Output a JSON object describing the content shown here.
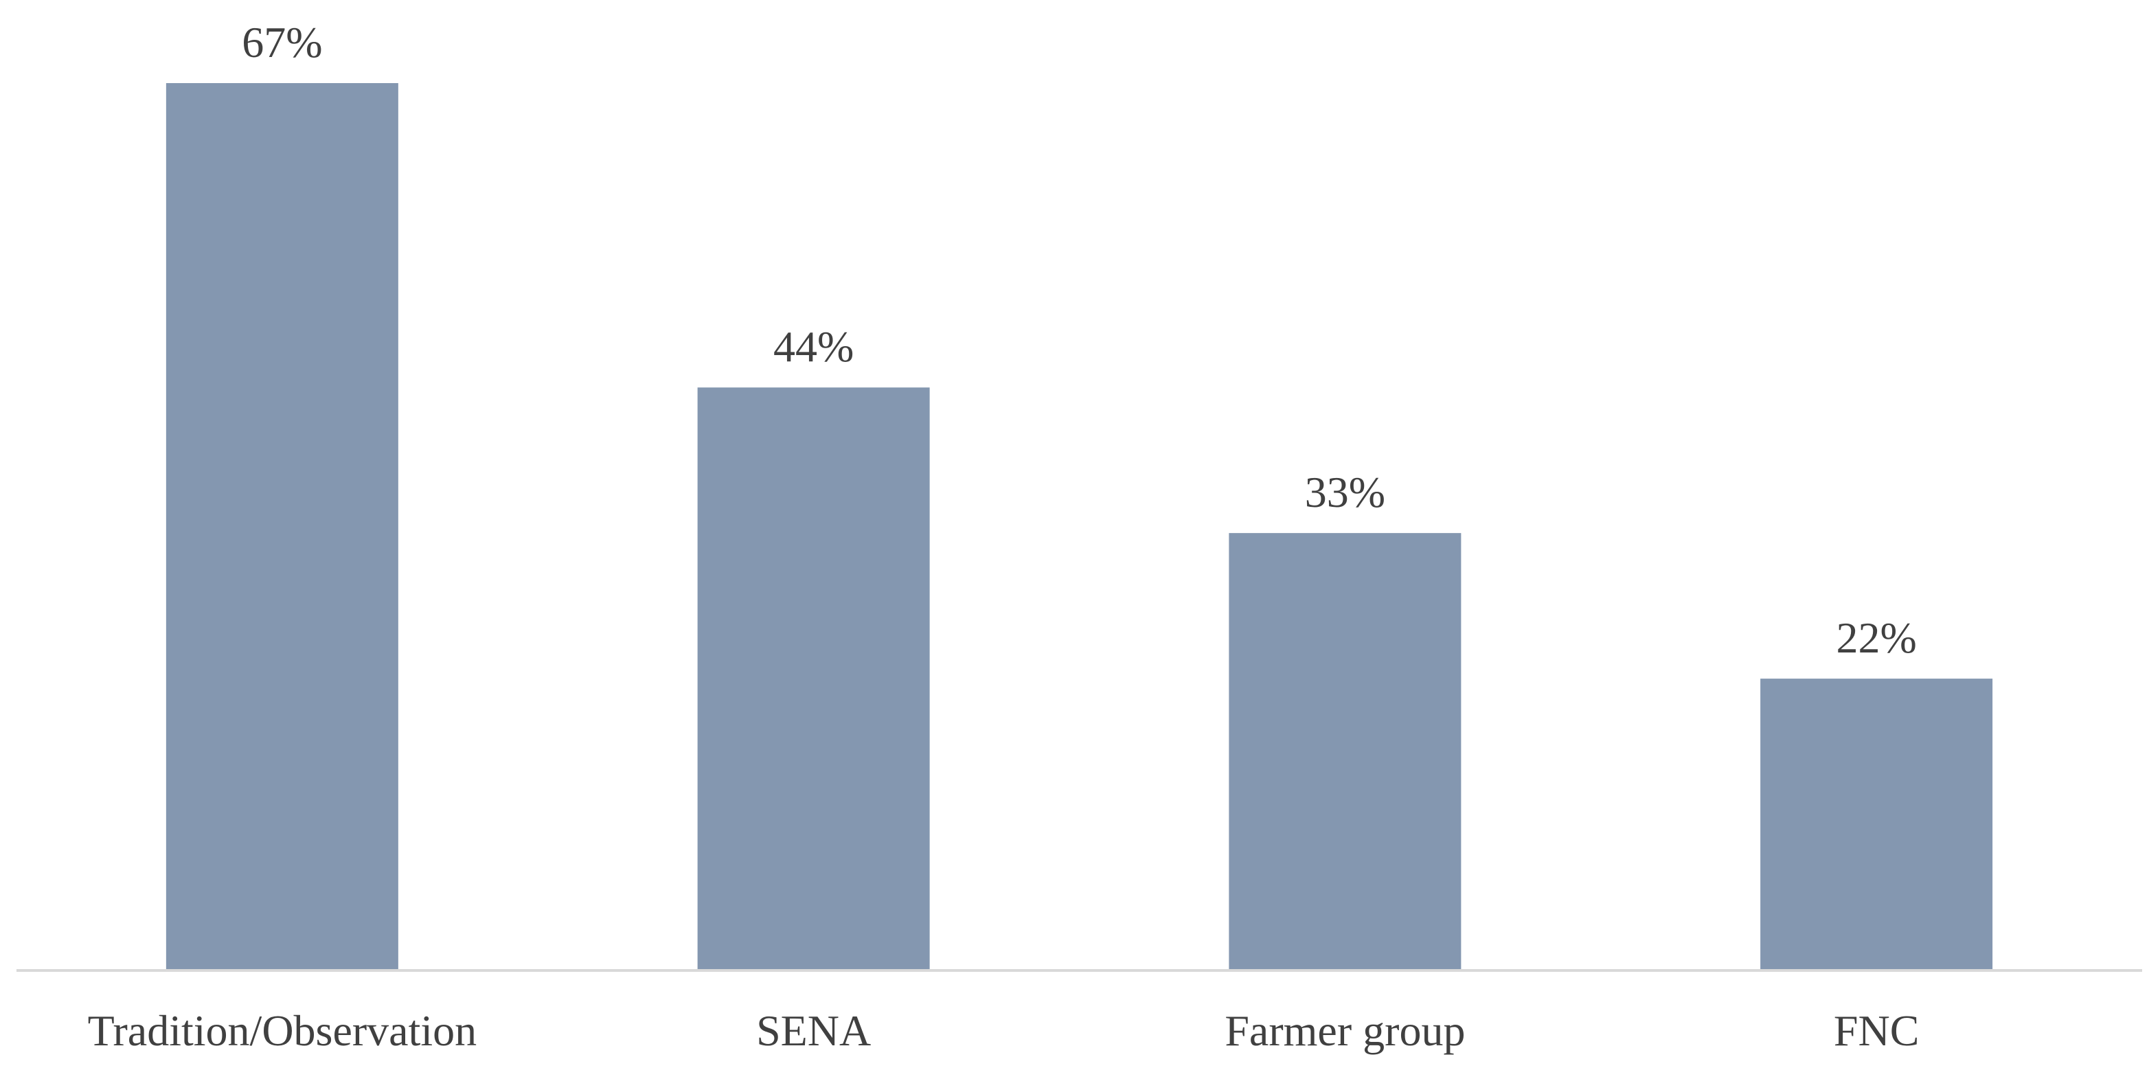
{
  "chart_data": {
    "type": "bar",
    "title": "",
    "xlabel": "",
    "ylabel": "",
    "categories": [
      "Tradition/Observation",
      "SENA",
      "Farmer group",
      "FNC"
    ],
    "values": [
      67,
      44,
      33,
      22
    ],
    "value_labels": [
      "67%",
      "44%",
      "33%",
      "22%"
    ],
    "unit": "%",
    "ylim": [
      0,
      67
    ],
    "grid": false,
    "legend": "none",
    "bar_color": "#8497B0",
    "axis_color": "#D9D9D9",
    "label_color": "#404040"
  }
}
